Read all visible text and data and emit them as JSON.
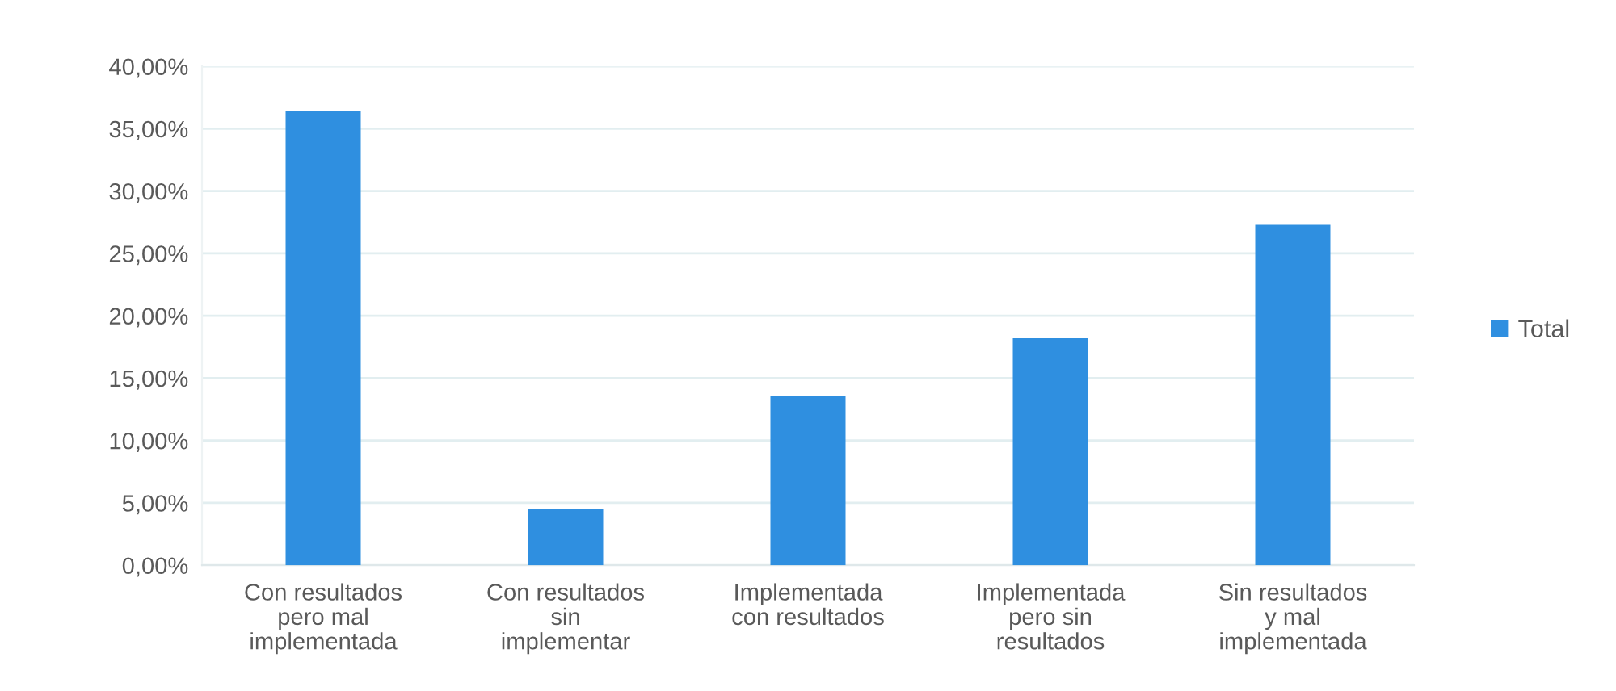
{
  "chart_data": {
    "type": "bar",
    "categories": [
      "Con resultados\npero mal\nimplementada",
      "Con resultados\nsin\nimplementar",
      "Implementada\ncon resultados",
      "Implementada\npero sin\nresultados",
      "Sin resultados\ny mal\nimplementada"
    ],
    "series": [
      {
        "name": "Total",
        "color": "#2f8fe0",
        "values": [
          36.4,
          4.5,
          13.6,
          18.2,
          27.3
        ]
      }
    ],
    "ylim": [
      0,
      40
    ],
    "yticks": [
      {
        "value": 0,
        "label": "0,00%"
      },
      {
        "value": 5,
        "label": "5,00%"
      },
      {
        "value": 10,
        "label": "10,00%"
      },
      {
        "value": 15,
        "label": "15,00%"
      },
      {
        "value": 20,
        "label": "20,00%"
      },
      {
        "value": 25,
        "label": "25,00%"
      },
      {
        "value": 30,
        "label": "30,00%"
      },
      {
        "value": 35,
        "label": "35,00%"
      },
      {
        "value": 40,
        "label": "40,00%"
      }
    ],
    "grid": "y",
    "legend": "right"
  }
}
